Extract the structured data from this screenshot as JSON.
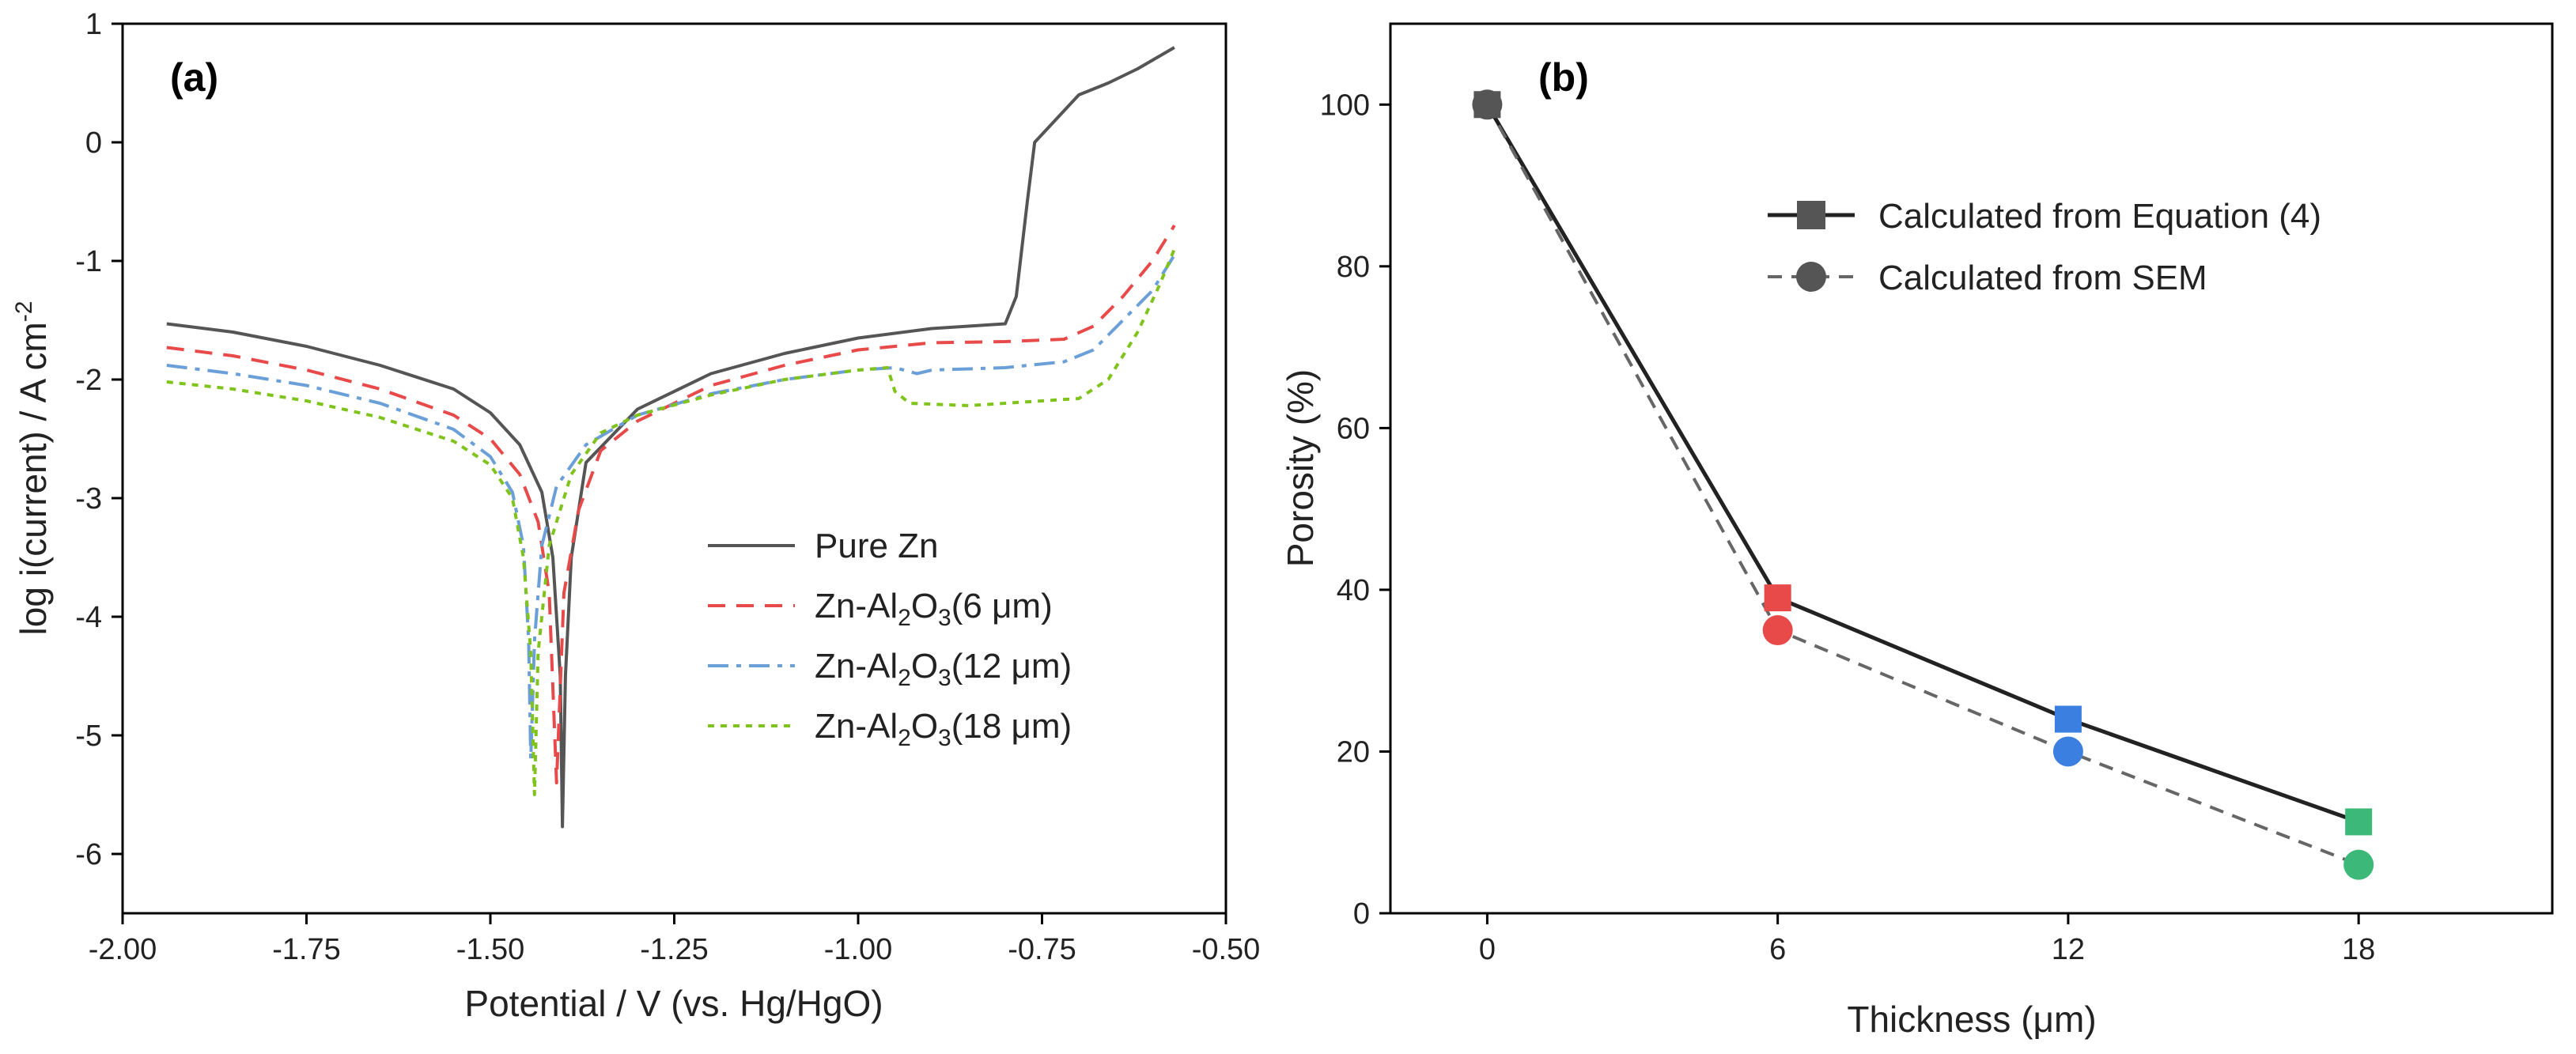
{
  "chart_data": [
    {
      "panel_label": "(a)",
      "type": "line",
      "xlabel": "Potential / V (vs. Hg/HgO)",
      "ylabel": "log i(current) / A cm",
      "ylabel_sup": "-2",
      "xlim": [
        -2.0,
        -0.5
      ],
      "ylim": [
        -6.5,
        1.0
      ],
      "xticks": [
        -2.0,
        -1.75,
        -1.5,
        -1.25,
        -1.0,
        -0.75,
        -0.5
      ],
      "xtick_labels": [
        "-2.00",
        "-1.75",
        "-1.50",
        "-1.25",
        "-1.00",
        "-0.75",
        "-0.50"
      ],
      "yticks": [
        1,
        0,
        -1,
        -2,
        -3,
        -4,
        -5,
        -6
      ],
      "ytick_labels": [
        "1",
        "0",
        "-1",
        "-2",
        "-3",
        "-4",
        "-5",
        "-6"
      ],
      "legend_position": "lower-right",
      "series": [
        {
          "name": "Pure Zn",
          "legend_label": "Pure Zn",
          "color": "#555555",
          "dash": "solid",
          "points": [
            [
              -1.94,
              -1.53
            ],
            [
              -1.85,
              -1.6
            ],
            [
              -1.75,
              -1.72
            ],
            [
              -1.65,
              -1.88
            ],
            [
              -1.55,
              -2.08
            ],
            [
              -1.5,
              -2.28
            ],
            [
              -1.46,
              -2.55
            ],
            [
              -1.43,
              -2.95
            ],
            [
              -1.415,
              -3.5
            ],
            [
              -1.405,
              -4.5
            ],
            [
              -1.402,
              -5.77
            ],
            [
              -1.398,
              -4.5
            ],
            [
              -1.39,
              -3.5
            ],
            [
              -1.37,
              -2.7
            ],
            [
              -1.3,
              -2.25
            ],
            [
              -1.2,
              -1.95
            ],
            [
              -1.1,
              -1.78
            ],
            [
              -1.0,
              -1.65
            ],
            [
              -0.9,
              -1.57
            ],
            [
              -0.8,
              -1.53
            ],
            [
              -0.785,
              -1.3
            ],
            [
              -0.77,
              -0.5
            ],
            [
              -0.76,
              0.0
            ],
            [
              -0.73,
              0.2
            ],
            [
              -0.7,
              0.4
            ],
            [
              -0.66,
              0.5
            ],
            [
              -0.62,
              0.62
            ],
            [
              -0.57,
              0.8
            ]
          ]
        },
        {
          "name": "Zn-Al2O3(6 μm)",
          "legend_label": "Zn-Al",
          "legend_sub": "2",
          "legend_mid": "O",
          "legend_sub2": "3",
          "legend_end": "(6 μm)",
          "color": "#e84a4a",
          "dash": "dashed",
          "points": [
            [
              -1.94,
              -1.73
            ],
            [
              -1.85,
              -1.8
            ],
            [
              -1.75,
              -1.92
            ],
            [
              -1.65,
              -2.08
            ],
            [
              -1.55,
              -2.3
            ],
            [
              -1.5,
              -2.5
            ],
            [
              -1.46,
              -2.8
            ],
            [
              -1.435,
              -3.2
            ],
            [
              -1.42,
              -3.8
            ],
            [
              -1.41,
              -5.4
            ],
            [
              -1.4,
              -3.8
            ],
            [
              -1.38,
              -3.1
            ],
            [
              -1.35,
              -2.6
            ],
            [
              -1.3,
              -2.35
            ],
            [
              -1.2,
              -2.05
            ],
            [
              -1.1,
              -1.88
            ],
            [
              -1.0,
              -1.75
            ],
            [
              -0.9,
              -1.69
            ],
            [
              -0.8,
              -1.68
            ],
            [
              -0.72,
              -1.66
            ],
            [
              -0.68,
              -1.55
            ],
            [
              -0.64,
              -1.3
            ],
            [
              -0.6,
              -1.0
            ],
            [
              -0.57,
              -0.7
            ]
          ]
        },
        {
          "name": "Zn-Al2O3(12 μm)",
          "legend_label": "Zn-Al",
          "legend_sub": "2",
          "legend_mid": "O",
          "legend_sub2": "3",
          "legend_end": "(12 μm)",
          "color": "#6a9fd8",
          "dash": "dashdot",
          "points": [
            [
              -1.94,
              -1.88
            ],
            [
              -1.85,
              -1.95
            ],
            [
              -1.75,
              -2.05
            ],
            [
              -1.65,
              -2.2
            ],
            [
              -1.55,
              -2.42
            ],
            [
              -1.5,
              -2.65
            ],
            [
              -1.47,
              -2.95
            ],
            [
              -1.455,
              -3.4
            ],
            [
              -1.448,
              -4.2
            ],
            [
              -1.445,
              -5.2
            ],
            [
              -1.44,
              -4.2
            ],
            [
              -1.43,
              -3.4
            ],
            [
              -1.41,
              -2.9
            ],
            [
              -1.37,
              -2.55
            ],
            [
              -1.3,
              -2.3
            ],
            [
              -1.2,
              -2.12
            ],
            [
              -1.1,
              -2.0
            ],
            [
              -1.0,
              -1.92
            ],
            [
              -0.95,
              -1.9
            ],
            [
              -0.92,
              -1.95
            ],
            [
              -0.9,
              -1.92
            ],
            [
              -0.8,
              -1.9
            ],
            [
              -0.72,
              -1.85
            ],
            [
              -0.68,
              -1.75
            ],
            [
              -0.64,
              -1.5
            ],
            [
              -0.6,
              -1.25
            ],
            [
              -0.57,
              -0.95
            ]
          ]
        },
        {
          "name": "Zn-Al2O3(18 μm)",
          "legend_label": "Zn-Al",
          "legend_sub": "2",
          "legend_mid": "O",
          "legend_sub2": "3",
          "legend_end": "(18 μm)",
          "color": "#7fc31c",
          "dash": "dotted",
          "points": [
            [
              -1.94,
              -2.02
            ],
            [
              -1.85,
              -2.08
            ],
            [
              -1.75,
              -2.18
            ],
            [
              -1.65,
              -2.32
            ],
            [
              -1.55,
              -2.52
            ],
            [
              -1.5,
              -2.72
            ],
            [
              -1.47,
              -3.0
            ],
            [
              -1.455,
              -3.5
            ],
            [
              -1.445,
              -4.3
            ],
            [
              -1.44,
              -5.5
            ],
            [
              -1.435,
              -4.3
            ],
            [
              -1.42,
              -3.4
            ],
            [
              -1.39,
              -2.8
            ],
            [
              -1.35,
              -2.45
            ],
            [
              -1.3,
              -2.3
            ],
            [
              -1.2,
              -2.13
            ],
            [
              -1.1,
              -2.0
            ],
            [
              -1.0,
              -1.92
            ],
            [
              -0.96,
              -1.9
            ],
            [
              -0.95,
              -2.1
            ],
            [
              -0.93,
              -2.2
            ],
            [
              -0.85,
              -2.22
            ],
            [
              -0.75,
              -2.18
            ],
            [
              -0.7,
              -2.16
            ],
            [
              -0.66,
              -2.0
            ],
            [
              -0.62,
              -1.6
            ],
            [
              -0.59,
              -1.2
            ],
            [
              -0.57,
              -0.9
            ]
          ]
        }
      ]
    },
    {
      "panel_label": "(b)",
      "type": "line",
      "xlabel": "Thickness (μm)",
      "ylabel": "Porosity (%)",
      "xlim": [
        -2,
        22
      ],
      "ylim": [
        0,
        110
      ],
      "xticks": [
        0,
        6,
        12,
        18
      ],
      "xtick_labels": [
        "0",
        "6",
        "12",
        "18"
      ],
      "yticks": [
        0,
        20,
        40,
        60,
        80,
        100
      ],
      "ytick_labels": [
        "0",
        "20",
        "40",
        "60",
        "80",
        "100"
      ],
      "legend_position": "upper-right",
      "x": [
        0,
        6,
        12,
        18
      ],
      "point_colors": [
        "#555555",
        "#e84a4a",
        "#3b7fe0",
        "#3cb878"
      ],
      "series": [
        {
          "name": "Calculated from Equation (4)",
          "marker": "square",
          "dash": "solid",
          "line_color": "#222222",
          "values": [
            100,
            39,
            24,
            11.3
          ]
        },
        {
          "name": "Calculated from SEM",
          "marker": "circle",
          "dash": "dashed",
          "line_color": "#666666",
          "values": [
            100,
            35,
            20,
            6
          ]
        }
      ]
    }
  ]
}
